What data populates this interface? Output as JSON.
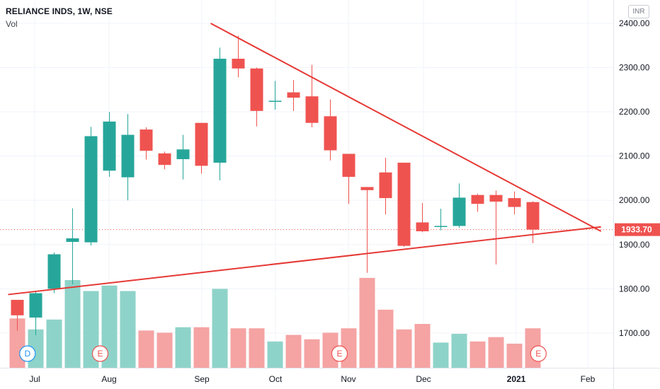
{
  "header": {
    "symbol_line": "RELIANCE INDS, 1W, NSE",
    "volume_label": "Vol"
  },
  "currency": "INR",
  "colors": {
    "up": "#26a69a",
    "down": "#ef5350",
    "up_vol": "#8ed3c9",
    "down_vol": "#f5a3a3",
    "trendline": "#e53935",
    "grid": "#f0f3fa",
    "price_line": "#ef5350"
  },
  "chart_data": {
    "type": "candlestick",
    "timeframe": "1W",
    "y_axis_ticks": [
      "1700.00",
      "1800.00",
      "1900.00",
      "2000.00",
      "2100.00",
      "2200.00",
      "2300.00",
      "2400.00"
    ],
    "x_axis_ticks": [
      "Jul",
      "Aug",
      "Sep",
      "Oct",
      "Nov",
      "Dec",
      "2021",
      "Feb"
    ],
    "last_price": "1933.70",
    "candles": [
      {
        "o": 1775,
        "h": 1775,
        "l": 1705,
        "c": 1740
      },
      {
        "o": 1735,
        "h": 1795,
        "l": 1695,
        "c": 1790
      },
      {
        "o": 1800,
        "h": 1882,
        "l": 1790,
        "c": 1878
      },
      {
        "o": 1906,
        "h": 1982,
        "l": 1810,
        "c": 1914
      },
      {
        "o": 1905,
        "h": 2166,
        "l": 1898,
        "c": 2145
      },
      {
        "o": 2067,
        "h": 2200,
        "l": 2053,
        "c": 2178
      },
      {
        "o": 2052,
        "h": 2195,
        "l": 2000,
        "c": 2148
      },
      {
        "o": 2160,
        "h": 2165,
        "l": 2092,
        "c": 2112
      },
      {
        "o": 2106,
        "h": 2110,
        "l": 2070,
        "c": 2080
      },
      {
        "o": 2093,
        "h": 2148,
        "l": 2047,
        "c": 2115
      },
      {
        "o": 2175,
        "h": 2175,
        "l": 2060,
        "c": 2078
      },
      {
        "o": 2085,
        "h": 2345,
        "l": 2045,
        "c": 2320
      },
      {
        "o": 2320,
        "h": 2372,
        "l": 2278,
        "c": 2298
      },
      {
        "o": 2298,
        "h": 2300,
        "l": 2167,
        "c": 2202
      },
      {
        "o": 2225,
        "h": 2270,
        "l": 2205,
        "c": 2225
      },
      {
        "o": 2244,
        "h": 2272,
        "l": 2202,
        "c": 2232
      },
      {
        "o": 2235,
        "h": 2306,
        "l": 2165,
        "c": 2175
      },
      {
        "o": 2190,
        "h": 2228,
        "l": 2090,
        "c": 2113
      },
      {
        "o": 2105,
        "h": 2103,
        "l": 1992,
        "c": 2053
      },
      {
        "o": 2030,
        "h": 2030,
        "l": 1836,
        "c": 2023
      },
      {
        "o": 2063,
        "h": 2096,
        "l": 1968,
        "c": 2005
      },
      {
        "o": 2085,
        "h": 2085,
        "l": 1895,
        "c": 1897
      },
      {
        "o": 1950,
        "h": 1994,
        "l": 1928,
        "c": 1930
      },
      {
        "o": 1940,
        "h": 1981,
        "l": 1932,
        "c": 1942
      },
      {
        "o": 1942,
        "h": 2038,
        "l": 1938,
        "c": 2006
      },
      {
        "o": 2012,
        "h": 2015,
        "l": 1974,
        "c": 1992
      },
      {
        "o": 2012,
        "h": 2022,
        "l": 1855,
        "c": 1997
      },
      {
        "o": 2005,
        "h": 2020,
        "l": 1968,
        "c": 1985
      },
      {
        "o": 1996,
        "h": 1998,
        "l": 1903,
        "c": 1933.7
      }
    ],
    "volume_relative": [
      0.45,
      0.35,
      0.44,
      0.8,
      0.7,
      0.75,
      0.7,
      0.34,
      0.32,
      0.37,
      0.37,
      0.72,
      0.36,
      0.36,
      0.24,
      0.3,
      0.26,
      0.32,
      0.36,
      0.82,
      0.53,
      0.35,
      0.4,
      0.23,
      0.31,
      0.24,
      0.28,
      0.22,
      0.36
    ],
    "trendlines": [
      {
        "from": {
          "candle": 10.5,
          "price": 2400
        },
        "to": {
          "candle": 31.7,
          "price": 1930
        }
      },
      {
        "from": {
          "candle": -0.5,
          "price": 1787
        },
        "to": {
          "candle": 31.7,
          "price": 1940
        }
      }
    ],
    "event_markers": [
      {
        "label": "D",
        "candle": 0.55,
        "style": "dividend"
      },
      {
        "label": "E",
        "candle": 4.5,
        "style": "earnings"
      },
      {
        "label": "E",
        "candle": 17.5,
        "style": "earnings"
      },
      {
        "label": "E",
        "candle": 28.3,
        "style": "earnings"
      }
    ]
  }
}
